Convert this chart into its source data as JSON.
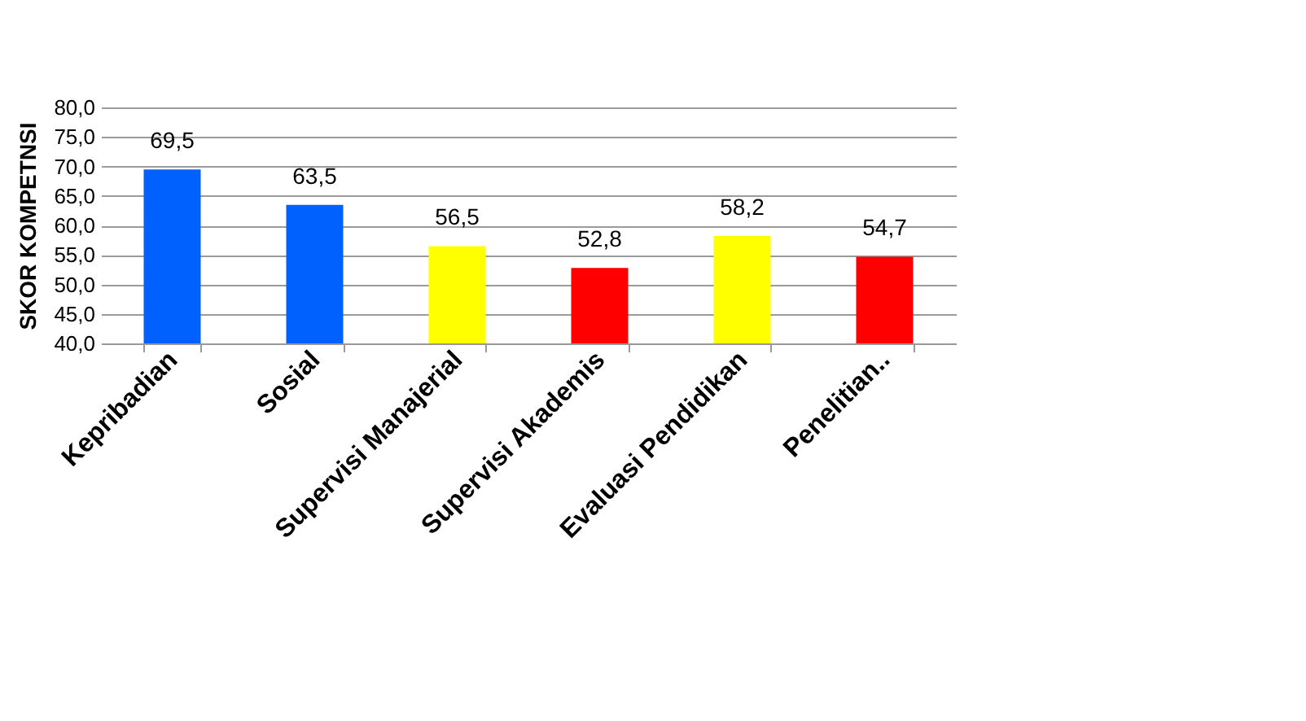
{
  "chart_data": {
    "type": "bar",
    "ylabel": "SKOR KOMPETNSI",
    "categories": [
      "Kepribadian",
      "Sosial",
      "Supervisi Manajerial",
      "Supervisi Akademis",
      "Evaluasi Pendidikan",
      "Penelitian.."
    ],
    "values": [
      69.5,
      63.5,
      56.5,
      52.8,
      58.2,
      54.7
    ],
    "colors": [
      "#0061ff",
      "#0061ff",
      "#ffff00",
      "#ff0000",
      "#ffff00",
      "#ff0000"
    ],
    "value_labels": [
      "69,5",
      "63,5",
      "56,5",
      "52,8",
      "58,2",
      "54,7"
    ],
    "ylim": [
      40,
      80
    ],
    "yticks": [
      {
        "value": 40,
        "label": "40,0"
      },
      {
        "value": 45,
        "label": "45,0"
      },
      {
        "value": 50,
        "label": "50,0"
      },
      {
        "value": 55,
        "label": "55,0"
      },
      {
        "value": 60,
        "label": "60,0"
      },
      {
        "value": 65,
        "label": "65,0"
      },
      {
        "value": 70,
        "label": "70,0"
      },
      {
        "value": 75,
        "label": "75,0"
      },
      {
        "value": 80,
        "label": "80,0"
      }
    ],
    "grid": "y",
    "legend": false
  }
}
